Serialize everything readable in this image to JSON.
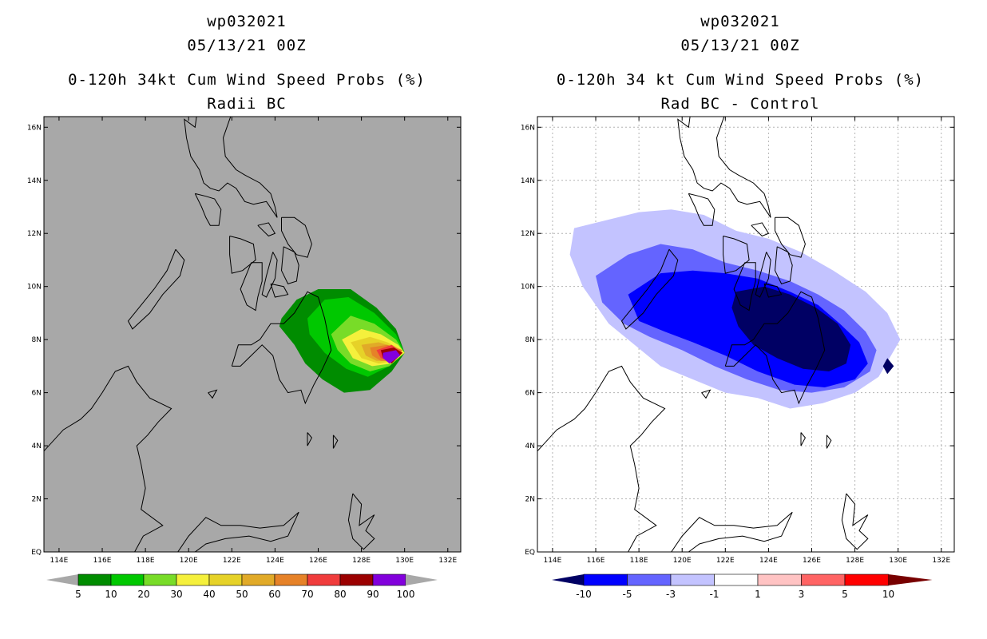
{
  "left": {
    "storm_id": "wp032021",
    "datetime": "05/13/21 00Z",
    "product": "0-120h 34kt Cum Wind Speed Probs (%)",
    "subtitle": "Radii BC",
    "background": "#a8a8a8",
    "colorbar": {
      "labels": [
        "5",
        "10",
        "20",
        "30",
        "40",
        "50",
        "60",
        "70",
        "80",
        "90",
        "100"
      ],
      "colors": [
        "#008c00",
        "#00c800",
        "#78dc28",
        "#f5f03c",
        "#e6d228",
        "#e1aa28",
        "#e68228",
        "#f03c3c",
        "#9b0000",
        "#8200dc"
      ],
      "end_color": "#a8a8a8"
    }
  },
  "right": {
    "storm_id": "wp032021",
    "datetime": "05/13/21 00Z",
    "product": "0-120h 34 kt Cum Wind Speed Probs (%)",
    "subtitle": "Rad BC - Control",
    "background": "#ffffff",
    "colorbar": {
      "labels": [
        "-10",
        "-5",
        "-3",
        "-1",
        "1",
        "3",
        "5",
        "10"
      ],
      "colors": [
        "#0000ff",
        "#6464ff",
        "#c3c3ff",
        "#ffffff",
        "#ffc3c3",
        "#ff6464",
        "#ff0000"
      ],
      "left_end_color": "#000064",
      "right_end_color": "#780000"
    }
  },
  "axes": {
    "lon_labels": [
      "114E",
      "116E",
      "118E",
      "120E",
      "122E",
      "124E",
      "126E",
      "128E",
      "130E",
      "132E"
    ],
    "lat_labels": [
      "EQ",
      "2N",
      "4N",
      "6N",
      "8N",
      "10N",
      "12N",
      "14N",
      "16N"
    ],
    "lon_range": [
      113.3,
      132.6
    ],
    "lat_range": [
      0,
      16.4
    ]
  }
}
